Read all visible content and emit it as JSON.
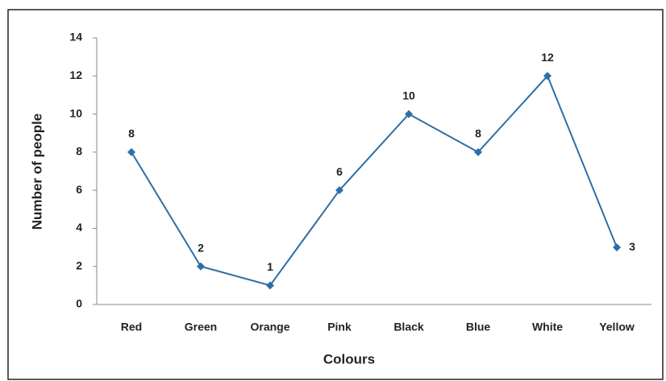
{
  "chart_data": {
    "type": "line",
    "x_label": "Colours",
    "y_label": "Number of people",
    "categories": [
      "Red",
      "Green",
      "Orange",
      "Pink",
      "Black",
      "Blue",
      "White",
      "Yellow"
    ],
    "series": [
      {
        "name": "Number of people",
        "color": "#2e6ea6",
        "values": [
          8,
          2,
          1,
          6,
          10,
          8,
          12,
          3
        ]
      }
    ],
    "ylim": [
      0,
      14
    ],
    "yticks": [
      0,
      2,
      4,
      6,
      8,
      10,
      12,
      14
    ],
    "grid": false,
    "legend": false
  }
}
